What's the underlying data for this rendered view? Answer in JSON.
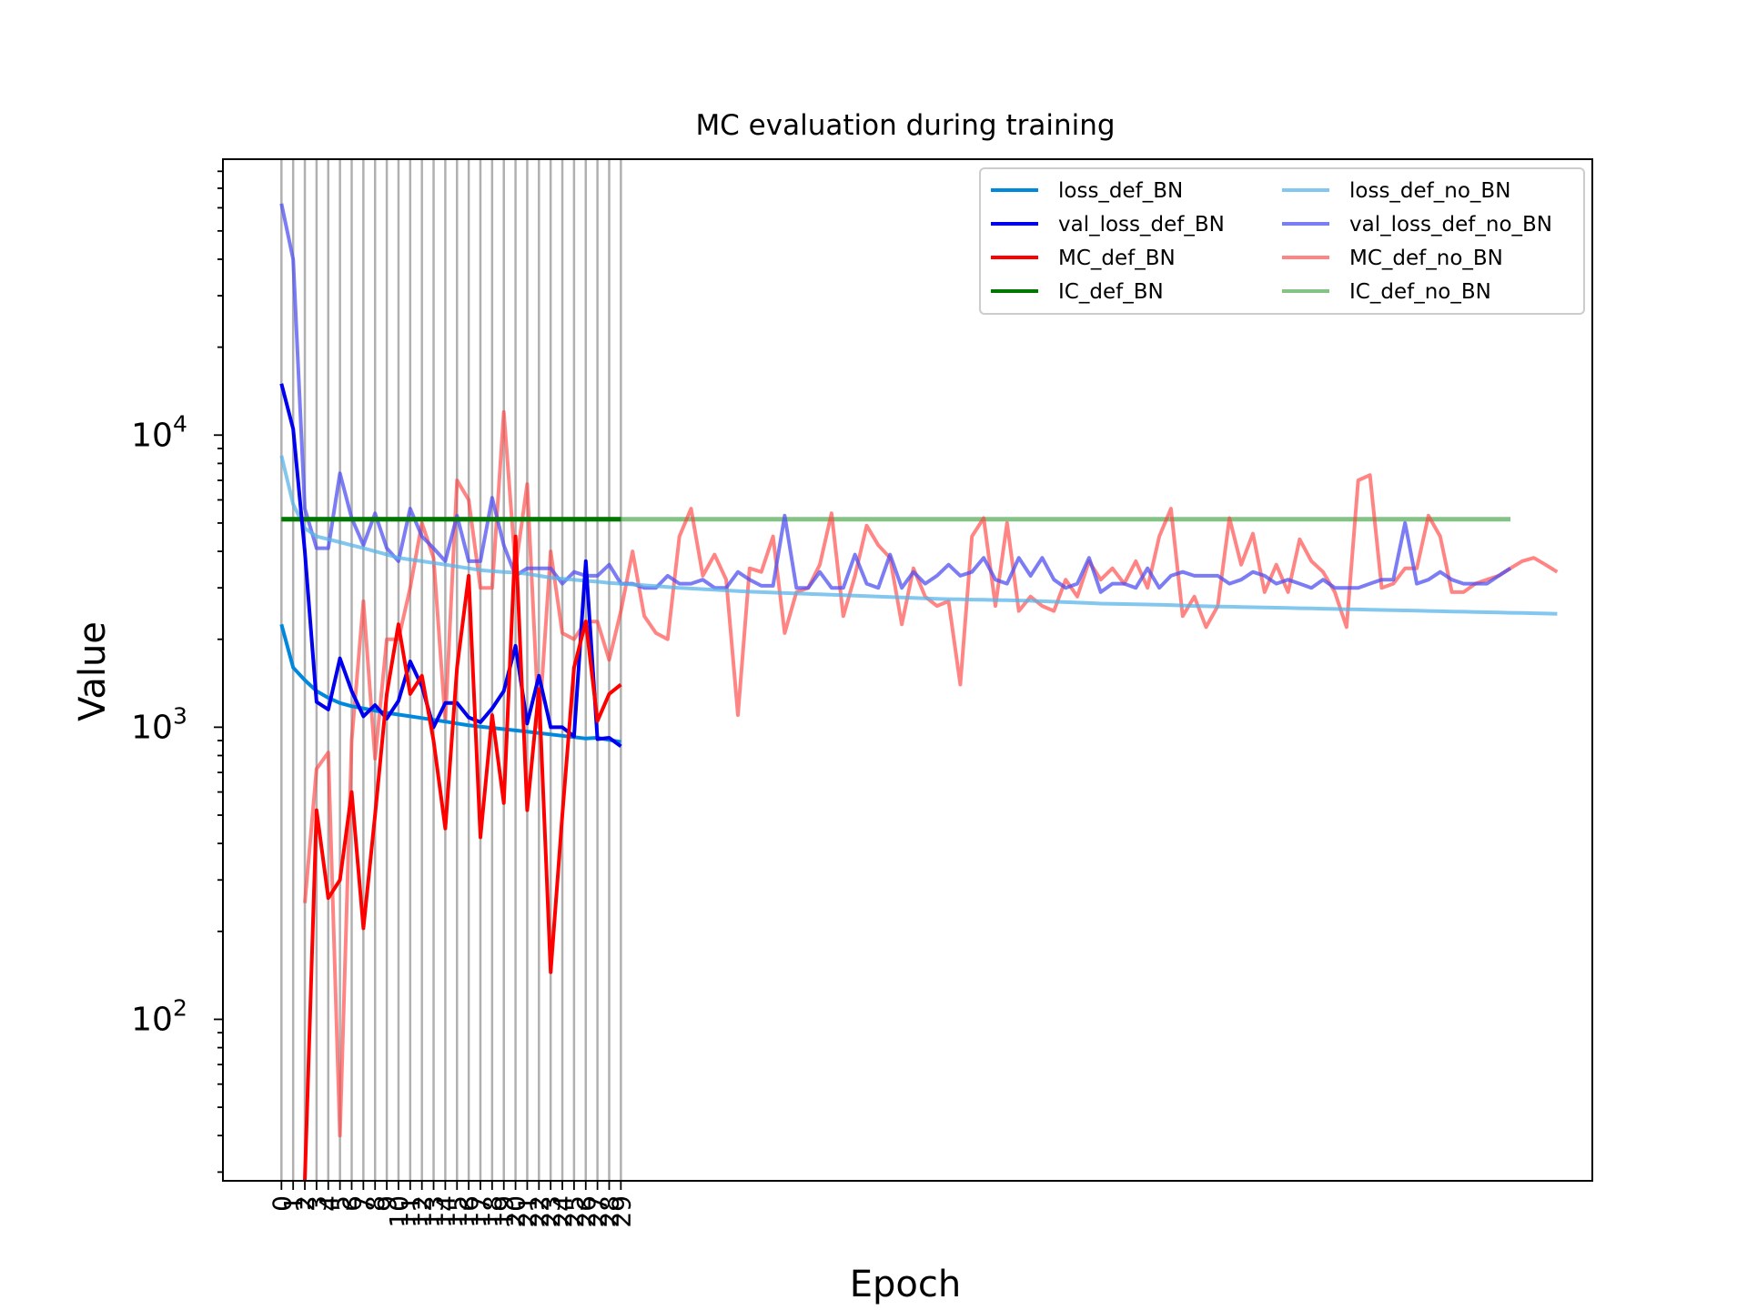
{
  "chart_data": {
    "type": "line",
    "title": "MC evaluation during training",
    "xlabel": "Epoch",
    "ylabel": "Value",
    "yscale": "log",
    "ylim": [
      28,
      88000
    ],
    "xlim": [
      -5,
      112
    ],
    "grid": "vertical lines at x = 0..29",
    "legend": {
      "placement": "upper-right",
      "columns": 2,
      "entries": [
        "loss_def_BN",
        "val_loss_def_BN",
        "MC_def_BN",
        "IC_def_BN",
        "loss_def_no_BN",
        "val_loss_def_no_BN",
        "MC_def_no_BN",
        "IC_def_no_BN"
      ]
    },
    "yticks": [
      {
        "value": 100,
        "base": "10",
        "exp": "2"
      },
      {
        "value": 1000,
        "base": "10",
        "exp": "3"
      },
      {
        "value": 10000,
        "base": "10",
        "exp": "4"
      }
    ],
    "xticks": [
      "0",
      "1",
      "2",
      "3",
      "4",
      "5",
      "6",
      "7",
      "8",
      "9",
      "10",
      "11",
      "12",
      "13",
      "14",
      "15",
      "16",
      "17",
      "18",
      "19",
      "20",
      "21",
      "22",
      "23",
      "24",
      "25",
      "26",
      "27",
      "28",
      "29"
    ],
    "series": [
      {
        "name": "loss_def_BN",
        "color": "#0088dd",
        "opacity": 1.0,
        "width": 4,
        "values": [
          2250,
          1600,
          1450,
          1330,
          1260,
          1210,
          1180,
          1160,
          1140,
          1120,
          1105,
          1090,
          1075,
          1060,
          1045,
          1030,
          1015,
          1005,
          995,
          985,
          975,
          965,
          955,
          945,
          935,
          925,
          915,
          920,
          905,
          890
        ]
      },
      {
        "name": "val_loss_def_BN",
        "color": "#0000ee",
        "opacity": 1.0,
        "width": 4,
        "values": [
          15000,
          10500,
          4000,
          1220,
          1150,
          1720,
          1330,
          1090,
          1190,
          1070,
          1230,
          1680,
          1380,
          1000,
          1210,
          1210,
          1080,
          1040,
          1160,
          1330,
          1900,
          1030,
          1500,
          1000,
          1000,
          930,
          3700,
          910,
          920,
          860
        ]
      },
      {
        "name": "MC_def_BN",
        "color": "#ff0000",
        "opacity": 1.0,
        "width": 4,
        "values": [
          null,
          null,
          28,
          520,
          260,
          300,
          600,
          205,
          500,
          1300,
          2250,
          1300,
          1500,
          900,
          450,
          1600,
          3300,
          420,
          1100,
          550,
          4500,
          520,
          1350,
          145,
          500,
          1600,
          2300,
          1050,
          1300,
          1400
        ]
      },
      {
        "name": "IC_def_BN",
        "color": "#007700",
        "opacity": 1.0,
        "width": 5,
        "values": [
          5150,
          5150,
          5150,
          5150,
          5150,
          5150,
          5150,
          5150,
          5150,
          5150,
          5150,
          5150,
          5150,
          5150,
          5150,
          5150,
          5150,
          5150,
          5150,
          5150,
          5150,
          5150,
          5150,
          5150,
          5150,
          5150,
          5150,
          5150,
          5150,
          5150
        ]
      },
      {
        "name": "loss_def_no_BN",
        "color": "#5ab4e8",
        "opacity": 0.75,
        "width": 4,
        "values": [
          8500,
          5800,
          4800,
          4500,
          4400,
          4300,
          4200,
          4100,
          4000,
          3900,
          3800,
          3750,
          3700,
          3650,
          3600,
          3550,
          3500,
          3450,
          3420,
          3400,
          3380,
          3350,
          3300,
          3250,
          3220,
          3200,
          3170,
          3150,
          3120,
          3100,
          3080,
          3060,
          3040,
          3020,
          3000,
          2985,
          2970,
          2955,
          2940,
          2925,
          2910,
          2900,
          2890,
          2880,
          2870,
          2860,
          2850,
          2840,
          2830,
          2820,
          2810,
          2800,
          2790,
          2780,
          2770,
          2760,
          2750,
          2745,
          2740,
          2735,
          2730,
          2725,
          2720,
          2715,
          2710,
          2700,
          2690,
          2680,
          2670,
          2660,
          2650,
          2645,
          2640,
          2635,
          2630,
          2625,
          2620,
          2610,
          2600,
          2595,
          2590,
          2585,
          2580,
          2575,
          2570,
          2565,
          2560,
          2555,
          2550,
          2545,
          2540,
          2535,
          2530,
          2525,
          2520,
          2515,
          2510,
          2505,
          2500,
          2495,
          2490,
          2485,
          2480,
          2475,
          2470,
          2465,
          2460,
          2455,
          2450,
          2445
        ]
      },
      {
        "name": "val_loss_def_no_BN",
        "color": "#5050f0",
        "opacity": 0.75,
        "width": 4,
        "values": [
          62000,
          40000,
          5600,
          4100,
          4100,
          7400,
          5200,
          4200,
          5400,
          4100,
          3700,
          5600,
          4500,
          4100,
          3700,
          5300,
          3700,
          3700,
          6100,
          4200,
          3300,
          3500,
          3500,
          3500,
          3100,
          3400,
          3300,
          3300,
          3600,
          3100,
          3100,
          3000,
          3000,
          3300,
          3100,
          3100,
          3200,
          3000,
          3000,
          3400,
          3200,
          3050,
          3050,
          5300,
          3000,
          3000,
          3400,
          3000,
          3000,
          3900,
          3100,
          3000,
          3900,
          3000,
          3400,
          3100,
          3300,
          3600,
          3300,
          3400,
          3800,
          3200,
          3100,
          3800,
          3300,
          3800,
          3200,
          3000,
          3100,
          3800,
          2900,
          3100,
          3100,
          3000,
          3500,
          3000,
          3300,
          3400,
          3300,
          3300,
          3300,
          3100,
          3200,
          3400,
          3300,
          3100,
          3200,
          3100,
          3000,
          3200,
          3000,
          3000,
          3000,
          3100,
          3200,
          3200,
          5000,
          3100,
          3200,
          3400,
          3200,
          3100,
          3100,
          3100,
          3300,
          3500
        ]
      },
      {
        "name": "MC_def_no_BN",
        "color": "#ff4444",
        "opacity": 0.65,
        "width": 4,
        "values": [
          null,
          null,
          250,
          720,
          820,
          40,
          900,
          2700,
          780,
          2000,
          2000,
          3000,
          5000,
          3800,
          1050,
          7000,
          6000,
          3000,
          3000,
          12000,
          3500,
          6800,
          1000,
          4000,
          2100,
          2000,
          2300,
          2300,
          1700,
          2500,
          4000,
          2400,
          2100,
          2000,
          4500,
          5600,
          3300,
          3900,
          3200,
          1100,
          3500,
          3400,
          4500,
          2100,
          2900,
          3000,
          3600,
          5400,
          2400,
          3300,
          4900,
          4200,
          3800,
          2250,
          3500,
          2800,
          2600,
          2700,
          1400,
          4500,
          5200,
          2600,
          5000,
          2500,
          2800,
          2600,
          2500,
          3200,
          2800,
          3700,
          3200,
          3500,
          3100,
          3700,
          3000,
          4500,
          5600,
          2400,
          2800,
          2200,
          2600,
          5200,
          3600,
          4600,
          2900,
          3600,
          2900,
          4400,
          3700,
          3400,
          2900,
          2200,
          7000,
          7300,
          3000,
          3100,
          3500,
          3500,
          5300,
          4500,
          2900,
          2900,
          3100,
          3200,
          3300,
          3500,
          3700,
          3800,
          3600,
          3400
        ]
      },
      {
        "name": "IC_def_no_BN",
        "color": "#339933",
        "opacity": 0.6,
        "width": 5,
        "values": [
          5150,
          5150,
          5150,
          5150,
          5150,
          5150,
          5150,
          5150,
          5150,
          5150,
          5150,
          5150,
          5150,
          5150,
          5150,
          5150,
          5150,
          5150,
          5150,
          5150,
          5150,
          5150,
          5150,
          5150,
          5150,
          5150,
          5150,
          5150,
          5150,
          5150,
          5150,
          5150,
          5150,
          5150,
          5150,
          5150,
          5150,
          5150,
          5150,
          5150,
          5150,
          5150,
          5150,
          5150,
          5150,
          5150,
          5150,
          5150,
          5150,
          5150,
          5150,
          5150,
          5150,
          5150,
          5150,
          5150,
          5150,
          5150,
          5150,
          5150,
          5150,
          5150,
          5150,
          5150,
          5150,
          5150,
          5150,
          5150,
          5150,
          5150,
          5150,
          5150,
          5150,
          5150,
          5150,
          5150,
          5150,
          5150,
          5150,
          5150,
          5150,
          5150,
          5150,
          5150,
          5150,
          5150,
          5150,
          5150,
          5150,
          5150,
          5150,
          5150,
          5150,
          5150,
          5150,
          5150,
          5150,
          5150,
          5150,
          5150,
          5150,
          5150,
          5150,
          5150,
          5150,
          5150
        ]
      }
    ]
  }
}
